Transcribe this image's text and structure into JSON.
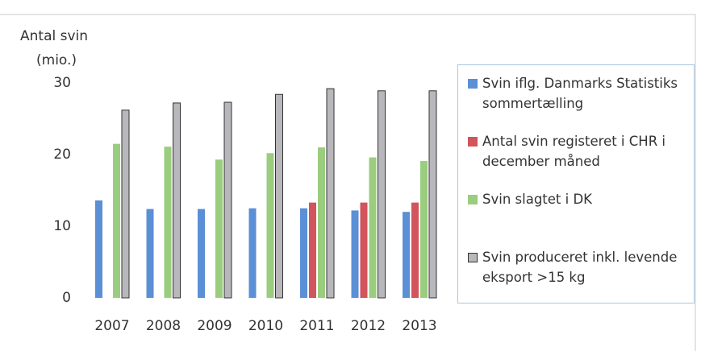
{
  "chart_data": {
    "type": "bar",
    "title": "Antal svin",
    "y_label": "(mio.)",
    "categories": [
      "2007",
      "2008",
      "2009",
      "2010",
      "2011",
      "2012",
      "2013"
    ],
    "series": [
      {
        "name": "Svin iflg. Danmarks Statistiks sommertælling",
        "color": "#5b8fd6",
        "values": [
          13.6,
          12.4,
          12.4,
          12.5,
          12.5,
          12.2,
          12.0
        ]
      },
      {
        "name": "Antal svin registeret i CHR i december måned",
        "color": "#d2545c",
        "values": [
          null,
          null,
          null,
          null,
          13.3,
          13.3,
          13.3
        ]
      },
      {
        "name": "Svin slagtet i DK",
        "color": "#9acd7e",
        "values": [
          21.5,
          21.1,
          19.3,
          20.2,
          21.0,
          19.6,
          19.1
        ]
      },
      {
        "name": "Svin produceret inkl. levende eksport >15 kg",
        "color": "#b8b8bc",
        "values": [
          26.2,
          27.2,
          27.3,
          28.4,
          29.2,
          28.9,
          28.9
        ]
      }
    ],
    "ylim": [
      0,
      30
    ],
    "yticks": [
      0,
      10,
      20,
      30
    ],
    "grid": false,
    "legend": "right"
  }
}
